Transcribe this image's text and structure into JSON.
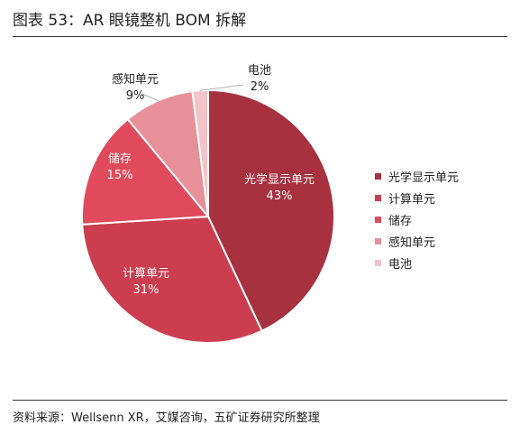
{
  "header": {
    "title": "图表 53：AR 眼镜整机 BOM 拆解"
  },
  "footer": {
    "source": "资料来源：Wellsenn XR，艾媒咨询，五矿证券研究所整理"
  },
  "chart_data": {
    "type": "pie",
    "title": "",
    "slices": [
      {
        "label": "光学显示单元",
        "value": 43,
        "value_label": "43%",
        "color": "#a8313f"
      },
      {
        "label": "计算单元",
        "value": 31,
        "value_label": "31%",
        "color": "#cc3d50"
      },
      {
        "label": "储存",
        "value": 15,
        "value_label": "15%",
        "color": "#e04a5c"
      },
      {
        "label": "感知单元",
        "value": 9,
        "value_label": "9%",
        "color": "#e8909a"
      },
      {
        "label": "电池",
        "value": 2,
        "value_label": "2%",
        "color": "#f3c3c9"
      }
    ],
    "legend_position": "right"
  }
}
